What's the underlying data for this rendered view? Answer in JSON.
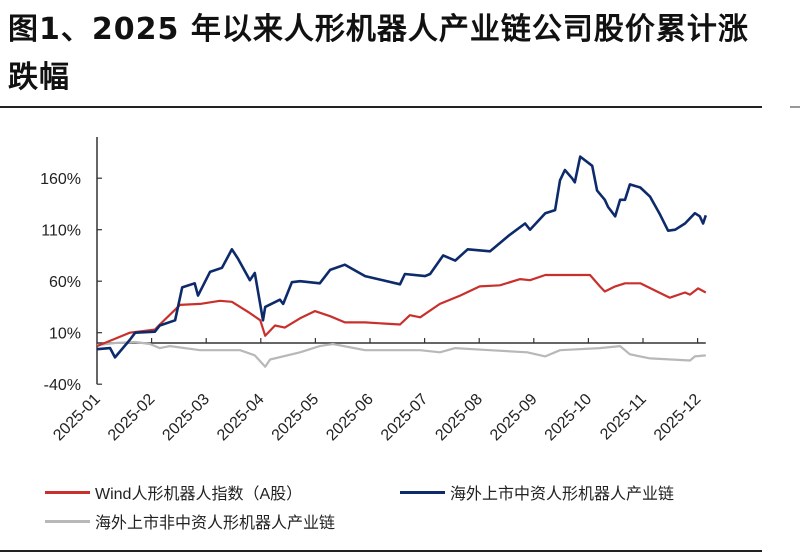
{
  "title": "图1、2025 年以来人形机器人产业链公司股价累计涨跌幅",
  "chart_data": {
    "type": "line",
    "title": "图1、2025 年以来人形机器人产业链公司股价累计涨跌幅",
    "xlabel": "",
    "ylabel": "",
    "x_unit": "months since 2025-01",
    "xlim": [
      0,
      11.15
    ],
    "ylim": [
      -40,
      200
    ],
    "yticks": [
      -40,
      10,
      60,
      110,
      160
    ],
    "ytick_labels": [
      "-40%",
      "10%",
      "60%",
      "110%",
      "160%"
    ],
    "xtick_labels": [
      "2025-01",
      "2025-02",
      "2025-03",
      "2025-04",
      "2025-05",
      "2025-06",
      "2025-07",
      "2025-08",
      "2025-09",
      "2025-10",
      "2025-11",
      "2025-12"
    ],
    "grid": false,
    "legend_position": "bottom",
    "series": [
      {
        "name": "Wind人形机器人指数（A股）",
        "color": "#c9302c",
        "points": [
          [
            0,
            -3
          ],
          [
            0.37,
            5
          ],
          [
            0.6,
            10
          ],
          [
            1.06,
            13
          ],
          [
            1.15,
            18
          ],
          [
            1.52,
            37
          ],
          [
            1.89,
            38
          ],
          [
            2.25,
            41
          ],
          [
            2.47,
            40
          ],
          [
            2.8,
            29
          ],
          [
            2.99,
            22
          ],
          [
            3.08,
            7
          ],
          [
            3.26,
            17
          ],
          [
            3.44,
            15
          ],
          [
            3.72,
            24
          ],
          [
            3.99,
            31
          ],
          [
            4.27,
            26
          ],
          [
            4.54,
            20
          ],
          [
            4.91,
            20
          ],
          [
            5.55,
            18
          ],
          [
            5.73,
            27
          ],
          [
            5.92,
            25
          ],
          [
            6.28,
            38
          ],
          [
            6.65,
            46
          ],
          [
            7.01,
            55
          ],
          [
            7.38,
            56
          ],
          [
            7.75,
            62
          ],
          [
            7.93,
            61
          ],
          [
            8.21,
            66
          ],
          [
            8.66,
            66
          ],
          [
            9.03,
            66
          ],
          [
            9.21,
            55
          ],
          [
            9.3,
            50
          ],
          [
            9.49,
            55
          ],
          [
            9.67,
            58
          ],
          [
            9.95,
            58
          ],
          [
            10.22,
            51
          ],
          [
            10.49,
            44
          ],
          [
            10.77,
            49
          ],
          [
            10.86,
            47
          ],
          [
            11.01,
            53
          ],
          [
            11.15,
            49
          ]
        ]
      },
      {
        "name": "海外上市中资人形机器人产业链",
        "color": "#0d2a6b",
        "points": [
          [
            0,
            -6
          ],
          [
            0.24,
            -5
          ],
          [
            0.33,
            -14
          ],
          [
            0.6,
            3
          ],
          [
            0.7,
            10
          ],
          [
            1.06,
            11
          ],
          [
            1.15,
            17
          ],
          [
            1.43,
            22
          ],
          [
            1.56,
            54
          ],
          [
            1.79,
            58
          ],
          [
            1.85,
            46
          ],
          [
            2.07,
            69
          ],
          [
            2.29,
            73
          ],
          [
            2.47,
            91
          ],
          [
            2.58,
            82
          ],
          [
            2.8,
            61
          ],
          [
            2.89,
            68
          ],
          [
            3.04,
            22
          ],
          [
            3.08,
            35
          ],
          [
            3.35,
            42
          ],
          [
            3.41,
            38
          ],
          [
            3.57,
            59
          ],
          [
            3.72,
            60
          ],
          [
            4.08,
            58
          ],
          [
            4.27,
            71
          ],
          [
            4.54,
            76
          ],
          [
            4.91,
            65
          ],
          [
            5.55,
            57
          ],
          [
            5.64,
            67
          ],
          [
            6.01,
            65
          ],
          [
            6.1,
            67
          ],
          [
            6.34,
            85
          ],
          [
            6.56,
            80
          ],
          [
            6.79,
            91
          ],
          [
            7.2,
            89
          ],
          [
            7.56,
            105
          ],
          [
            7.84,
            116
          ],
          [
            7.93,
            110
          ],
          [
            8.21,
            126
          ],
          [
            8.39,
            129
          ],
          [
            8.48,
            158
          ],
          [
            8.57,
            168
          ],
          [
            8.7,
            160
          ],
          [
            8.75,
            156
          ],
          [
            8.85,
            181
          ],
          [
            9.07,
            172
          ],
          [
            9.16,
            148
          ],
          [
            9.3,
            139
          ],
          [
            9.36,
            132
          ],
          [
            9.49,
            123
          ],
          [
            9.58,
            139
          ],
          [
            9.67,
            139
          ],
          [
            9.76,
            154
          ],
          [
            9.95,
            151
          ],
          [
            10.13,
            142
          ],
          [
            10.31,
            125
          ],
          [
            10.46,
            109
          ],
          [
            10.59,
            110
          ],
          [
            10.77,
            116
          ],
          [
            10.95,
            126
          ],
          [
            11.04,
            123
          ],
          [
            11.1,
            116
          ],
          [
            11.15,
            124
          ]
        ]
      },
      {
        "name": "海外上市非中资人形机器人产业链",
        "color": "#b8b8b8",
        "points": [
          [
            0,
            -2
          ],
          [
            0.33,
            0
          ],
          [
            0.7,
            1
          ],
          [
            0.97,
            -1
          ],
          [
            1.15,
            -5
          ],
          [
            1.34,
            -3
          ],
          [
            1.89,
            -7
          ],
          [
            2.62,
            -7
          ],
          [
            2.89,
            -12
          ],
          [
            3.08,
            -23
          ],
          [
            3.17,
            -16
          ],
          [
            3.72,
            -9
          ],
          [
            4.08,
            -3
          ],
          [
            4.32,
            -1
          ],
          [
            4.91,
            -7
          ],
          [
            5.92,
            -7
          ],
          [
            6.28,
            -9
          ],
          [
            6.56,
            -5
          ],
          [
            7.2,
            -7
          ],
          [
            7.88,
            -9
          ],
          [
            8.21,
            -13
          ],
          [
            8.48,
            -7
          ],
          [
            9.21,
            -5
          ],
          [
            9.58,
            -3
          ],
          [
            9.76,
            -11
          ],
          [
            10.13,
            -15
          ],
          [
            10.86,
            -17
          ],
          [
            10.95,
            -13
          ],
          [
            11.15,
            -12
          ]
        ]
      }
    ]
  }
}
